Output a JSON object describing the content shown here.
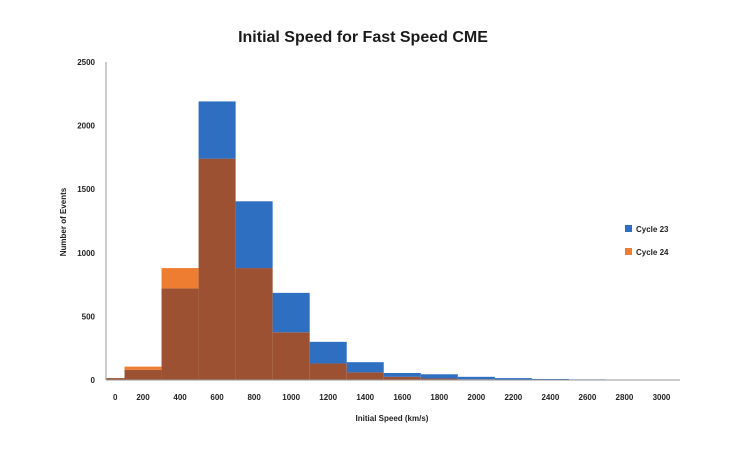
{
  "chart_data": {
    "type": "bar",
    "title": "Initial Speed for Fast Speed CME",
    "xlabel": "Initial Speed (km/s)",
    "ylabel": "Number of Events",
    "x_ticks": [
      "0",
      "200",
      "400",
      "600",
      "800",
      "1000",
      "1200",
      "1400",
      "1600",
      "1800",
      "2000",
      "2200",
      "2400",
      "2600",
      "2800",
      "3000"
    ],
    "y_ticks": [
      "0",
      "500",
      "1000",
      "1500",
      "2000",
      "2500"
    ],
    "ylim": [
      0,
      2500
    ],
    "bin_edges": [
      0,
      100,
      300,
      500,
      700,
      900,
      1100,
      1300,
      1500,
      1700,
      1900,
      2100,
      2300,
      2500,
      2700,
      2900,
      3100
    ],
    "series": [
      {
        "name": "Cycle 23",
        "color": "#2e6fc2",
        "values": [
          15,
          80,
          720,
          2190,
          1405,
          685,
          300,
          140,
          55,
          45,
          25,
          15,
          8,
          5,
          3,
          2
        ]
      },
      {
        "name": "Cycle 24",
        "color": "#ee7d31",
        "values": [
          15,
          105,
          880,
          1740,
          880,
          375,
          130,
          60,
          25,
          12,
          6,
          3,
          2,
          1,
          0,
          0
        ]
      }
    ],
    "overlap_color": "#9c5232",
    "legend_position": "right",
    "grid": false
  }
}
